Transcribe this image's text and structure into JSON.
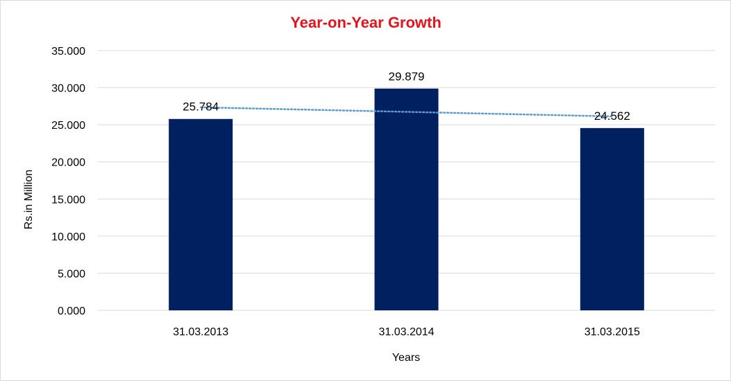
{
  "chart_data": {
    "type": "bar",
    "title": "Year-on-Year Growth",
    "xlabel": "Years",
    "ylabel": "Rs.in Million",
    "categories": [
      "31.03.2013",
      "31.03.2014",
      "31.03.2015"
    ],
    "values": [
      25.784,
      29.879,
      24.562
    ],
    "data_labels": [
      "25.784",
      "29.879",
      "24.562"
    ],
    "yticks": [
      "0.000",
      "5.000",
      "10.000",
      "15.000",
      "20.000",
      "25.000",
      "30.000",
      "35.000"
    ],
    "ylim": [
      0,
      35
    ],
    "grid": true,
    "legend": "none",
    "trendline": "linear",
    "colors": {
      "bar": "#002060",
      "title": "#e8121c",
      "grid": "#d9d9d9",
      "trendline": "#5b9bd5"
    }
  }
}
